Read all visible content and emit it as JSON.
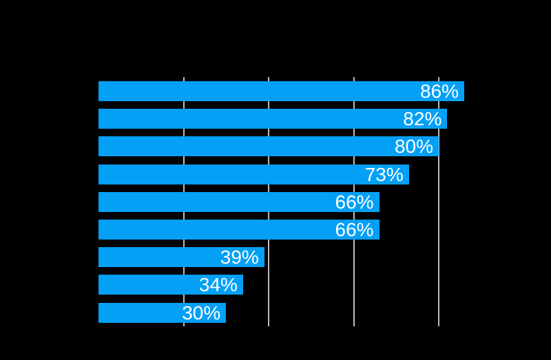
{
  "chart_data": {
    "type": "bar",
    "orientation": "horizontal",
    "values": [
      86,
      82,
      80,
      73,
      66,
      66,
      39,
      34,
      30
    ],
    "data_labels": [
      "86%",
      "82%",
      "80%",
      "73%",
      "66%",
      "66%",
      "39%",
      "34%",
      "30%"
    ],
    "xlim": [
      0,
      100
    ],
    "gridlines_x": [
      20,
      40,
      60,
      80
    ],
    "grid": true,
    "legend": false,
    "title": "",
    "colors": {
      "background": "#000000",
      "bar": "#04A0F6",
      "value_label": "#FFFFFF",
      "gridline": "#BDBDBD"
    }
  }
}
